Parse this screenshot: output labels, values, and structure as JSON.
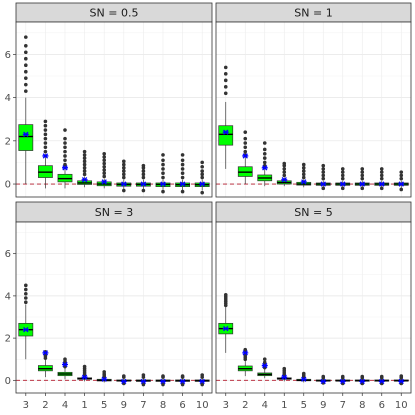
{
  "chart_data": {
    "type": "boxplot",
    "layout": "facet-2x2",
    "title": "",
    "xlabel": "",
    "ylabel": "",
    "ylim": [
      -0.6,
      7.5
    ],
    "y_ticks": [
      0,
      2,
      4,
      6
    ],
    "reference_line": {
      "y": 0,
      "color": "#b2182b",
      "style": "dashed"
    },
    "colors": {
      "box_fill": "#00ff00",
      "median": "#000000",
      "outlier": "#333333",
      "mean_marker": "#0000ff"
    },
    "categories": [
      "3",
      "2",
      "4",
      "1",
      "5",
      "9",
      "7",
      "8",
      "6",
      "10"
    ],
    "facets": [
      {
        "label": "SN =  0.5",
        "boxes": [
          {
            "lo": 0.0,
            "q1": 1.55,
            "median": 2.2,
            "q3": 2.75,
            "hi": 4.0,
            "mean": 2.3,
            "outliers": [
              4.3,
              4.6,
              4.9,
              5.2,
              5.5,
              5.8,
              6.1,
              6.4,
              6.8
            ]
          },
          {
            "lo": -0.2,
            "q1": 0.3,
            "median": 0.55,
            "q3": 0.85,
            "hi": 1.4,
            "mean": 1.3,
            "outliers": [
              1.5,
              1.7,
              1.9,
              2.1,
              2.3,
              2.5,
              2.7,
              2.9
            ]
          },
          {
            "lo": -0.2,
            "q1": 0.1,
            "median": 0.25,
            "q3": 0.45,
            "hi": 0.85,
            "mean": 0.75,
            "outliers": [
              0.9,
              1.1,
              1.3,
              1.5,
              1.7,
              1.9,
              2.1,
              2.5
            ]
          },
          {
            "lo": -0.15,
            "q1": -0.02,
            "median": 0.05,
            "q3": 0.15,
            "hi": 0.35,
            "mean": 0.2,
            "outliers": [
              0.45,
              0.6,
              0.75,
              0.9,
              1.05,
              1.2,
              1.35,
              1.5
            ]
          },
          {
            "lo": -0.2,
            "q1": -0.08,
            "median": 0.0,
            "q3": 0.1,
            "hi": 0.25,
            "mean": 0.1,
            "outliers": [
              0.35,
              0.5,
              0.65,
              0.8,
              0.95,
              1.1,
              1.25,
              1.4
            ]
          },
          {
            "lo": -0.25,
            "q1": -0.1,
            "median": -0.02,
            "q3": 0.05,
            "hi": 0.2,
            "mean": 0.0,
            "outliers": [
              -0.3,
              0.3,
              0.45,
              0.6,
              0.75,
              0.9,
              1.05
            ]
          },
          {
            "lo": -0.25,
            "q1": -0.1,
            "median": -0.02,
            "q3": 0.05,
            "hi": 0.2,
            "mean": 0.0,
            "outliers": [
              -0.3,
              0.3,
              0.45,
              0.6,
              0.75,
              0.85
            ]
          },
          {
            "lo": -0.25,
            "q1": -0.12,
            "median": -0.02,
            "q3": 0.05,
            "hi": 0.2,
            "mean": 0.0,
            "outliers": [
              -0.35,
              0.3,
              0.5,
              0.7,
              0.9,
              1.1,
              1.35
            ]
          },
          {
            "lo": -0.3,
            "q1": -0.12,
            "median": -0.03,
            "q3": 0.05,
            "hi": 0.2,
            "mean": 0.0,
            "outliers": [
              -0.35,
              0.3,
              0.5,
              0.7,
              0.9,
              1.1,
              1.35
            ]
          },
          {
            "lo": -0.3,
            "q1": -0.12,
            "median": -0.03,
            "q3": 0.05,
            "hi": 0.2,
            "mean": 0.0,
            "outliers": [
              -0.4,
              0.3,
              0.45,
              0.6,
              0.8,
              1.0
            ]
          }
        ]
      },
      {
        "label": "SN = 1",
        "boxes": [
          {
            "lo": 0.7,
            "q1": 1.8,
            "median": 2.3,
            "q3": 2.7,
            "hi": 3.8,
            "mean": 2.4,
            "outliers": [
              4.2,
              4.5,
              4.8,
              5.1,
              5.4
            ]
          },
          {
            "lo": 0.0,
            "q1": 0.35,
            "median": 0.55,
            "q3": 0.8,
            "hi": 1.25,
            "mean": 1.3,
            "outliers": [
              1.35,
              1.5,
              1.7,
              1.9,
              2.1,
              2.4
            ]
          },
          {
            "lo": -0.1,
            "q1": 0.15,
            "median": 0.28,
            "q3": 0.42,
            "hi": 0.75,
            "mean": 0.75,
            "outliers": [
              0.85,
              1.0,
              1.2,
              1.4,
              1.6,
              1.9
            ]
          },
          {
            "lo": -0.1,
            "q1": 0.0,
            "median": 0.07,
            "q3": 0.15,
            "hi": 0.3,
            "mean": 0.2,
            "outliers": [
              0.4,
              0.55,
              0.7,
              0.85,
              0.95
            ]
          },
          {
            "lo": -0.15,
            "q1": -0.05,
            "median": 0.0,
            "q3": 0.08,
            "hi": 0.2,
            "mean": 0.1,
            "outliers": [
              0.3,
              0.45,
              0.6,
              0.75,
              0.9
            ]
          },
          {
            "lo": -0.15,
            "q1": -0.06,
            "median": 0.0,
            "q3": 0.05,
            "hi": 0.15,
            "mean": 0.0,
            "outliers": [
              -0.2,
              0.25,
              0.4,
              0.55,
              0.7,
              0.85
            ]
          },
          {
            "lo": -0.15,
            "q1": -0.06,
            "median": 0.0,
            "q3": 0.05,
            "hi": 0.15,
            "mean": 0.0,
            "outliers": [
              -0.2,
              0.25,
              0.4,
              0.55,
              0.7
            ]
          },
          {
            "lo": -0.15,
            "q1": -0.06,
            "median": 0.0,
            "q3": 0.05,
            "hi": 0.15,
            "mean": 0.0,
            "outliers": [
              -0.2,
              0.25,
              0.4,
              0.55,
              0.7
            ]
          },
          {
            "lo": -0.15,
            "q1": -0.06,
            "median": 0.0,
            "q3": 0.05,
            "hi": 0.15,
            "mean": 0.0,
            "outliers": [
              -0.2,
              0.25,
              0.4,
              0.55,
              0.7
            ]
          },
          {
            "lo": -0.2,
            "q1": -0.06,
            "median": 0.0,
            "q3": 0.05,
            "hi": 0.15,
            "mean": 0.0,
            "outliers": [
              -0.25,
              0.25,
              0.4,
              0.55
            ]
          }
        ]
      },
      {
        "label": "SN = 3",
        "boxes": [
          {
            "lo": 1.0,
            "q1": 2.1,
            "median": 2.4,
            "q3": 2.7,
            "hi": 3.6,
            "mean": 2.4,
            "outliers": [
              3.7,
              3.9,
              4.1,
              4.3,
              4.5
            ]
          },
          {
            "lo": 0.15,
            "q1": 0.45,
            "median": 0.55,
            "q3": 0.7,
            "hi": 1.0,
            "mean": 1.3,
            "outliers": [
              1.05,
              1.15,
              1.25,
              1.35
            ]
          },
          {
            "lo": 0.05,
            "q1": 0.22,
            "median": 0.3,
            "q3": 0.38,
            "hi": 0.6,
            "mean": 0.75,
            "outliers": [
              0.65,
              0.8,
              0.9,
              1.0
            ]
          },
          {
            "lo": -0.05,
            "q1": 0.05,
            "median": 0.08,
            "q3": 0.12,
            "hi": 0.2,
            "mean": 0.15,
            "outliers": [
              0.25,
              0.35,
              0.45,
              0.55,
              0.65
            ]
          },
          {
            "lo": -0.1,
            "q1": -0.03,
            "median": 0.0,
            "q3": 0.05,
            "hi": 0.12,
            "mean": 0.05,
            "outliers": [
              0.18,
              0.25,
              0.3,
              0.4
            ]
          },
          {
            "lo": -0.1,
            "q1": -0.04,
            "median": -0.02,
            "q3": 0.02,
            "hi": 0.1,
            "mean": -0.05,
            "outliers": [
              -0.15,
              0.15,
              0.2
            ]
          },
          {
            "lo": -0.15,
            "q1": -0.05,
            "median": -0.02,
            "q3": 0.02,
            "hi": 0.1,
            "mean": -0.05,
            "outliers": [
              -0.2,
              0.15,
              0.25
            ]
          },
          {
            "lo": -0.15,
            "q1": -0.05,
            "median": -0.02,
            "q3": 0.02,
            "hi": 0.1,
            "mean": -0.05,
            "outliers": [
              -0.2,
              0.15,
              0.2
            ]
          },
          {
            "lo": -0.15,
            "q1": -0.05,
            "median": -0.02,
            "q3": 0.02,
            "hi": 0.1,
            "mean": -0.05,
            "outliers": [
              -0.2,
              0.15,
              0.2
            ]
          },
          {
            "lo": -0.15,
            "q1": -0.05,
            "median": -0.02,
            "q3": 0.02,
            "hi": 0.1,
            "mean": -0.05,
            "outliers": [
              -0.2,
              0.15,
              0.25
            ]
          }
        ]
      },
      {
        "label": "SN = 5",
        "boxes": [
          {
            "lo": 1.3,
            "q1": 2.2,
            "median": 2.45,
            "q3": 2.7,
            "hi": 3.5,
            "mean": 2.45,
            "outliers": [
              3.55,
              3.65,
              3.75,
              3.85,
              3.95,
              4.05
            ]
          },
          {
            "lo": 0.2,
            "q1": 0.45,
            "median": 0.55,
            "q3": 0.68,
            "hi": 0.95,
            "mean": 1.3,
            "outliers": [
              1.0,
              1.1,
              1.2,
              1.3,
              1.45
            ]
          },
          {
            "lo": 0.1,
            "q1": 0.22,
            "median": 0.28,
            "q3": 0.35,
            "hi": 0.55,
            "mean": 0.7,
            "outliers": [
              0.6,
              0.7,
              0.85,
              1.0
            ]
          },
          {
            "lo": -0.05,
            "q1": 0.05,
            "median": 0.08,
            "q3": 0.12,
            "hi": 0.2,
            "mean": 0.15,
            "outliers": [
              0.25,
              0.35,
              0.45,
              0.55
            ]
          },
          {
            "lo": -0.1,
            "q1": -0.02,
            "median": 0.0,
            "q3": 0.05,
            "hi": 0.12,
            "mean": 0.05,
            "outliers": [
              0.18,
              0.25,
              0.32
            ]
          },
          {
            "lo": -0.1,
            "q1": -0.04,
            "median": -0.02,
            "q3": 0.02,
            "hi": 0.08,
            "mean": -0.05,
            "outliers": [
              -0.12,
              0.12,
              0.18
            ]
          },
          {
            "lo": -0.12,
            "q1": -0.04,
            "median": -0.02,
            "q3": 0.02,
            "hi": 0.08,
            "mean": -0.05,
            "outliers": [
              -0.15,
              0.12,
              0.18
            ]
          },
          {
            "lo": -0.12,
            "q1": -0.04,
            "median": -0.02,
            "q3": 0.02,
            "hi": 0.08,
            "mean": -0.05,
            "outliers": [
              -0.15,
              0.12,
              0.18
            ]
          },
          {
            "lo": -0.12,
            "q1": -0.04,
            "median": -0.02,
            "q3": 0.02,
            "hi": 0.08,
            "mean": -0.05,
            "outliers": [
              -0.15,
              0.12,
              0.18
            ]
          },
          {
            "lo": -0.12,
            "q1": -0.04,
            "median": -0.02,
            "q3": 0.02,
            "hi": 0.08,
            "mean": -0.05,
            "outliers": [
              -0.15,
              0.12,
              0.2
            ]
          }
        ]
      }
    ]
  }
}
